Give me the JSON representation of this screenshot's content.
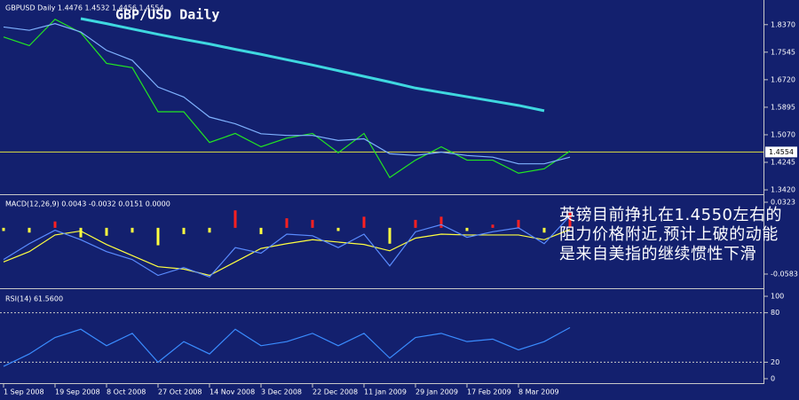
{
  "chart_data": [
    {
      "type": "line",
      "title": "GBP/USD Daily",
      "subtitle": "GBPUSD Daily  1.4476 1.4532 1.4456 1.4554",
      "annotation": "英镑目前挣扎在1.4550左右的阻力价格附近,预计上破的动能是来自美指的继续惯性下滑",
      "categories": [
        "1 Sep 2008",
        null,
        "19 Sep 2008",
        null,
        "8 Oct 2008",
        null,
        "27 Oct 2008",
        null,
        "14 Nov 2008",
        null,
        "3 Dec 2008",
        null,
        "22 Dec 2008",
        null,
        "11 Jan 2009",
        null,
        "29 Jan 2009",
        null,
        "17 Feb 2009",
        null,
        "8 Mar 2009",
        null,
        null
      ],
      "series": [
        {
          "color": "#22e622",
          "values": [
            1.8,
            1.774,
            1.853,
            1.813,
            1.721,
            1.708,
            1.576,
            1.576,
            1.484,
            1.511,
            1.471,
            1.497,
            1.511,
            1.453,
            1.511,
            1.379,
            1.431,
            1.471,
            1.431,
            1.431,
            1.392,
            1.405,
            1.458
          ]
        },
        {
          "color": "#7fb2ff",
          "values": [
            1.83,
            1.82,
            1.84,
            1.815,
            1.76,
            1.73,
            1.65,
            1.62,
            1.56,
            1.54,
            1.51,
            1.505,
            1.505,
            1.49,
            1.495,
            1.45,
            1.445,
            1.455,
            1.445,
            1.44,
            1.42,
            1.42,
            1.44
          ]
        },
        {
          "color": "#3fd8e0",
          "values": [
            null,
            null,
            null,
            1.855,
            1.84,
            1.824,
            1.808,
            1.793,
            1.779,
            1.763,
            1.748,
            1.732,
            1.716,
            1.699,
            1.682,
            1.665,
            1.647,
            1.634,
            1.621,
            1.608,
            1.595,
            1.579,
            null
          ]
        }
      ],
      "current_price": 1.4554,
      "ylim": [
        1.3315,
        1.9055
      ],
      "yticks": [
        {
          "value": 1.837,
          "label": "1.8370"
        },
        1.7545,
        {
          "value": 1.672,
          "label": "1.6720"
        },
        1.5895,
        {
          "value": 1.507,
          "label": "1.5070"
        },
        1.4245,
        {
          "value": 1.342,
          "label": "1.3420"
        }
      ]
    },
    {
      "type": "bar",
      "title": "MACD(12,26,9) 0.0043 -0.0032 0.0151 0.0000",
      "values": [
        -0.004,
        -0.006,
        0.008,
        -0.012,
        -0.01,
        -0.006,
        -0.022,
        -0.008,
        -0.006,
        0.022,
        -0.008,
        0.012,
        0.01,
        -0.004,
        0.014,
        -0.02,
        0.01,
        0.014,
        -0.004,
        0.004,
        0.01,
        -0.006,
        0.02
      ],
      "colors": {
        "positive": "#ff2020",
        "negative": "#ffff40"
      },
      "series": [
        {
          "color": "#ffff40",
          "values": [
            -0.043,
            -0.03,
            -0.009,
            -0.004,
            -0.021,
            -0.035,
            -0.049,
            -0.052,
            -0.06,
            -0.043,
            -0.026,
            -0.02,
            -0.015,
            -0.018,
            -0.021,
            -0.029,
            -0.013,
            -0.008,
            -0.009,
            -0.009,
            -0.009,
            -0.015,
            -0.002
          ]
        },
        {
          "color": "#5a8cff",
          "values": [
            -0.04,
            -0.02,
            -0.003,
            -0.015,
            -0.03,
            -0.04,
            -0.06,
            -0.05,
            -0.062,
            -0.025,
            -0.032,
            -0.008,
            -0.01,
            -0.025,
            -0.008,
            -0.048,
            -0.005,
            0.004,
            -0.012,
            -0.005,
            0.0,
            -0.02,
            0.015
          ]
        }
      ],
      "ylim": [
        -0.0762,
        0.039
      ],
      "yticks": [
        0.0323,
        -0.0583
      ]
    },
    {
      "type": "line",
      "title": "RSI(14) 61.5600",
      "series": [
        {
          "color": "#3a8cff",
          "values": [
            15,
            30,
            50,
            60,
            40,
            55,
            20,
            45,
            30,
            60,
            40,
            45,
            55,
            40,
            55,
            25,
            50,
            55,
            45,
            48,
            35,
            45,
            62
          ]
        }
      ],
      "ylim": [
        -5.4,
        106.5
      ],
      "yticks": [
        100,
        80,
        20,
        0
      ],
      "levels": [
        80,
        20
      ]
    }
  ]
}
